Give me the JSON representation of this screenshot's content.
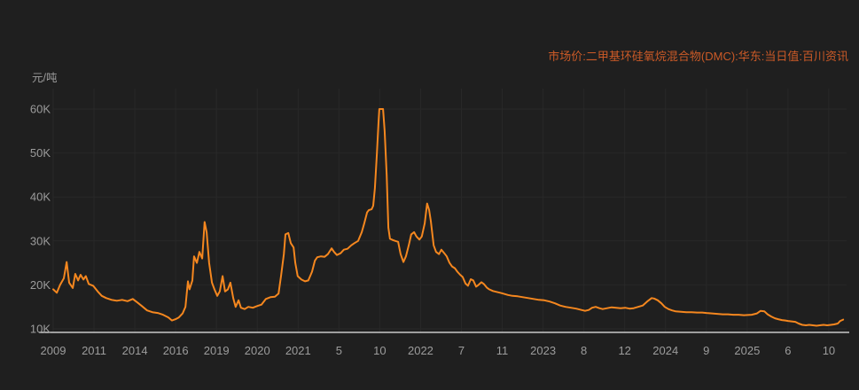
{
  "title": {
    "text": "市场价:二甲基环硅氧烷混合物(DMC):华东:当日值:百川资讯",
    "color": "#cb5a27"
  },
  "y_axis": {
    "unit": "元/吨",
    "label_color": "#9c9c9c"
  },
  "chart_data": {
    "type": "line",
    "series_name": "市场价:二甲基环硅氧烷混合物(DMC):华东:当日值:百川资讯",
    "line_color": "#f5871f",
    "background_color": "#1f1f1f",
    "grid_color": "#282828",
    "axis_line_color": "#c9c9c9",
    "legend_position": "top-right",
    "grid": true,
    "y_unit": "元/吨",
    "y_tick_labels": [
      "10K",
      "20K",
      "30K",
      "40K",
      "50K",
      "60K"
    ],
    "y_tick_values": [
      10,
      20,
      30,
      40,
      50,
      60
    ],
    "ylim": [
      9.2,
      64
    ],
    "x_tick_labels": [
      "2009",
      "2011",
      "2014",
      "2016",
      "2019",
      "2020",
      "2021",
      "5",
      "10",
      "2022",
      "7",
      "11",
      "2023",
      "8",
      "12",
      "2024",
      "9",
      "2025",
      "6",
      "10"
    ],
    "x_unit": "fractional tick-index along categorical time axis (values in thousands of 元/吨)",
    "points": [
      [
        0,
        19
      ],
      [
        0.09,
        18.2
      ],
      [
        0.17,
        20
      ],
      [
        0.26,
        21.5
      ],
      [
        0.33,
        25.2
      ],
      [
        0.39,
        20.5
      ],
      [
        0.48,
        19.3
      ],
      [
        0.54,
        22.5
      ],
      [
        0.61,
        21
      ],
      [
        0.67,
        22.3
      ],
      [
        0.74,
        21.2
      ],
      [
        0.8,
        22
      ],
      [
        0.87,
        20.2
      ],
      [
        0.98,
        19.8
      ],
      [
        1.09,
        18.5
      ],
      [
        1.19,
        17.5
      ],
      [
        1.3,
        17
      ],
      [
        1.43,
        16.6
      ],
      [
        1.56,
        16.4
      ],
      [
        1.69,
        16.6
      ],
      [
        1.82,
        16.3
      ],
      [
        1.95,
        16.8
      ],
      [
        2.06,
        16
      ],
      [
        2.17,
        15.2
      ],
      [
        2.3,
        14.2
      ],
      [
        2.43,
        13.8
      ],
      [
        2.56,
        13.6
      ],
      [
        2.69,
        13.2
      ],
      [
        2.82,
        12.6
      ],
      [
        2.91,
        11.9
      ],
      [
        3,
        12.2
      ],
      [
        3.08,
        12.6
      ],
      [
        3.17,
        13.5
      ],
      [
        3.24,
        15
      ],
      [
        3.3,
        20.8
      ],
      [
        3.34,
        19
      ],
      [
        3.41,
        21
      ],
      [
        3.45,
        26.5
      ],
      [
        3.52,
        25
      ],
      [
        3.58,
        27.5
      ],
      [
        3.65,
        26
      ],
      [
        3.71,
        34.3
      ],
      [
        3.76,
        32
      ],
      [
        3.82,
        25
      ],
      [
        3.89,
        20.5
      ],
      [
        3.95,
        19
      ],
      [
        4.02,
        17.5
      ],
      [
        4.08,
        18.5
      ],
      [
        4.15,
        22
      ],
      [
        4.21,
        18.5
      ],
      [
        4.28,
        19
      ],
      [
        4.34,
        20.5
      ],
      [
        4.41,
        17
      ],
      [
        4.47,
        15
      ],
      [
        4.54,
        16.5
      ],
      [
        4.6,
        14.8
      ],
      [
        4.69,
        14.5
      ],
      [
        4.78,
        15
      ],
      [
        4.89,
        14.8
      ],
      [
        5,
        15.2
      ],
      [
        5.1,
        15.5
      ],
      [
        5.21,
        16.8
      ],
      [
        5.32,
        17.2
      ],
      [
        5.43,
        17.3
      ],
      [
        5.52,
        18
      ],
      [
        5.58,
        22
      ],
      [
        5.65,
        27
      ],
      [
        5.69,
        31.5
      ],
      [
        5.76,
        31.8
      ],
      [
        5.82,
        29.5
      ],
      [
        5.89,
        28.5
      ],
      [
        5.93,
        25
      ],
      [
        5.99,
        22
      ],
      [
        6.08,
        21.2
      ],
      [
        6.17,
        20.8
      ],
      [
        6.25,
        21
      ],
      [
        6.34,
        23
      ],
      [
        6.41,
        25.5
      ],
      [
        6.47,
        26.3
      ],
      [
        6.56,
        26.5
      ],
      [
        6.65,
        26.4
      ],
      [
        6.73,
        27
      ],
      [
        6.82,
        28.3
      ],
      [
        6.88,
        27.5
      ],
      [
        6.95,
        26.8
      ],
      [
        7.04,
        27.2
      ],
      [
        7.12,
        28
      ],
      [
        7.21,
        28.2
      ],
      [
        7.3,
        29
      ],
      [
        7.38,
        29.5
      ],
      [
        7.47,
        30
      ],
      [
        7.56,
        32
      ],
      [
        7.62,
        34
      ],
      [
        7.69,
        36.5
      ],
      [
        7.73,
        37
      ],
      [
        7.8,
        37.2
      ],
      [
        7.84,
        38
      ],
      [
        7.88,
        42
      ],
      [
        7.93,
        50
      ],
      [
        7.97,
        57
      ],
      [
        7.99,
        60
      ],
      [
        8.08,
        60
      ],
      [
        8.12,
        55
      ],
      [
        8.17,
        45
      ],
      [
        8.21,
        33
      ],
      [
        8.25,
        30.5
      ],
      [
        8.32,
        30.2
      ],
      [
        8.38,
        30
      ],
      [
        8.45,
        29.8
      ],
      [
        8.51,
        27
      ],
      [
        8.58,
        25.2
      ],
      [
        8.64,
        26.5
      ],
      [
        8.71,
        29
      ],
      [
        8.77,
        31.5
      ],
      [
        8.84,
        32
      ],
      [
        8.9,
        31
      ],
      [
        8.97,
        30.3
      ],
      [
        9.03,
        31
      ],
      [
        9.1,
        34
      ],
      [
        9.16,
        38.5
      ],
      [
        9.21,
        37
      ],
      [
        9.25,
        34.5
      ],
      [
        9.32,
        29
      ],
      [
        9.38,
        27.5
      ],
      [
        9.45,
        27
      ],
      [
        9.51,
        28
      ],
      [
        9.58,
        27.2
      ],
      [
        9.64,
        26.5
      ],
      [
        9.71,
        25
      ],
      [
        9.77,
        24.2
      ],
      [
        9.84,
        23.8
      ],
      [
        9.9,
        23
      ],
      [
        9.97,
        22.3
      ],
      [
        10.03,
        21.8
      ],
      [
        10.1,
        20.3
      ],
      [
        10.16,
        19.8
      ],
      [
        10.23,
        21.3
      ],
      [
        10.29,
        21
      ],
      [
        10.36,
        19.6
      ],
      [
        10.42,
        20
      ],
      [
        10.49,
        20.6
      ],
      [
        10.55,
        20.2
      ],
      [
        10.62,
        19.4
      ],
      [
        10.68,
        19
      ],
      [
        10.77,
        18.6
      ],
      [
        10.86,
        18.4
      ],
      [
        10.95,
        18.2
      ],
      [
        11.03,
        18
      ],
      [
        11.14,
        17.7
      ],
      [
        11.25,
        17.5
      ],
      [
        11.38,
        17.4
      ],
      [
        11.51,
        17.2
      ],
      [
        11.64,
        17
      ],
      [
        11.77,
        16.8
      ],
      [
        11.9,
        16.6
      ],
      [
        12.03,
        16.5
      ],
      [
        12.16,
        16.2
      ],
      [
        12.29,
        15.8
      ],
      [
        12.42,
        15.3
      ],
      [
        12.55,
        15
      ],
      [
        12.68,
        14.8
      ],
      [
        12.81,
        14.6
      ],
      [
        12.94,
        14.3
      ],
      [
        13.03,
        14.1
      ],
      [
        13.12,
        14.3
      ],
      [
        13.2,
        14.8
      ],
      [
        13.29,
        15
      ],
      [
        13.38,
        14.7
      ],
      [
        13.46,
        14.5
      ],
      [
        13.57,
        14.7
      ],
      [
        13.68,
        14.9
      ],
      [
        13.79,
        14.8
      ],
      [
        13.9,
        14.7
      ],
      [
        14.01,
        14.8
      ],
      [
        14.12,
        14.6
      ],
      [
        14.22,
        14.7
      ],
      [
        14.33,
        15
      ],
      [
        14.44,
        15.3
      ],
      [
        14.55,
        16.2
      ],
      [
        14.66,
        17
      ],
      [
        14.72,
        16.9
      ],
      [
        14.81,
        16.5
      ],
      [
        14.9,
        15.8
      ],
      [
        14.98,
        15
      ],
      [
        15.07,
        14.5
      ],
      [
        15.16,
        14.2
      ],
      [
        15.24,
        14
      ],
      [
        15.38,
        13.9
      ],
      [
        15.51,
        13.8
      ],
      [
        15.64,
        13.8
      ],
      [
        15.77,
        13.7
      ],
      [
        15.9,
        13.7
      ],
      [
        16,
        13.6
      ],
      [
        16.14,
        13.5
      ],
      [
        16.27,
        13.4
      ],
      [
        16.4,
        13.3
      ],
      [
        16.53,
        13.3
      ],
      [
        16.66,
        13.2
      ],
      [
        16.79,
        13.2
      ],
      [
        16.92,
        13.1
      ],
      [
        17.11,
        13.2
      ],
      [
        17.24,
        13.5
      ],
      [
        17.33,
        14.1
      ],
      [
        17.42,
        14
      ],
      [
        17.5,
        13.3
      ],
      [
        17.59,
        12.8
      ],
      [
        17.68,
        12.4
      ],
      [
        17.76,
        12.2
      ],
      [
        17.85,
        12
      ],
      [
        17.94,
        11.9
      ],
      [
        18,
        11.8
      ],
      [
        18.09,
        11.7
      ],
      [
        18.18,
        11.6
      ],
      [
        18.26,
        11.2
      ],
      [
        18.35,
        10.9
      ],
      [
        18.44,
        10.8
      ],
      [
        18.52,
        10.9
      ],
      [
        18.61,
        10.8
      ],
      [
        18.7,
        10.7
      ],
      [
        18.78,
        10.8
      ],
      [
        18.87,
        10.9
      ],
      [
        18.96,
        10.8
      ],
      [
        19.05,
        10.9
      ],
      [
        19.13,
        11
      ],
      [
        19.22,
        11.2
      ],
      [
        19.28,
        11.8
      ],
      [
        19.35,
        12.1
      ]
    ]
  }
}
